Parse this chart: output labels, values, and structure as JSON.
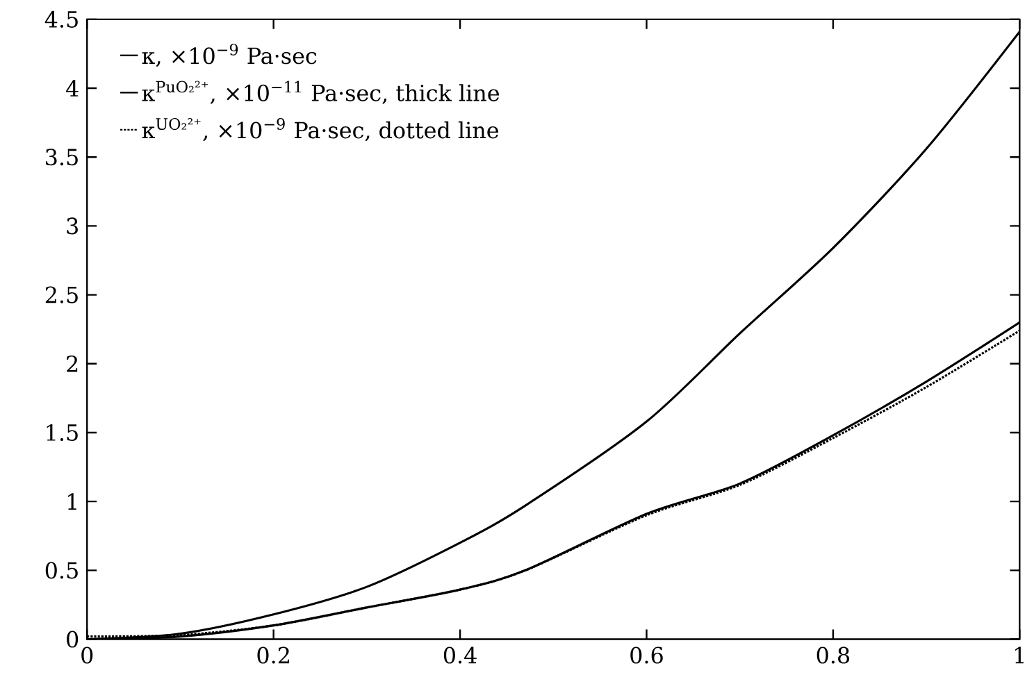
{
  "chart_data": {
    "type": "line",
    "x": [
      0,
      0.1,
      0.2,
      0.3,
      0.4,
      0.47,
      0.6,
      0.7,
      0.8,
      0.9,
      1
    ],
    "series": [
      {
        "name": "κ, ×10$^{−9}$ Pa·sec",
        "color": "#000000",
        "line_style": "solid",
        "values": [
          0,
          0.04,
          0.18,
          0.38,
          0.7,
          0.97,
          1.58,
          2.22,
          2.84,
          3.56,
          4.41
        ]
      },
      {
        "name": "κ$^{PuO₂²⁺}$, ×10$^{−11}$ Pa·sec, thick line",
        "color": "#000000",
        "line_style": "solid",
        "values": [
          0,
          0.02,
          0.1,
          0.23,
          0.36,
          0.5,
          0.91,
          1.13,
          1.48,
          1.87,
          2.3
        ]
      },
      {
        "name": "κ$^{UO₂²⁺}$, ×10$^{−9}$ Pa·sec, dotted line",
        "color": "#000000",
        "line_style": "dotted",
        "values": [
          0.02,
          0.03,
          0.1,
          0.23,
          0.36,
          0.5,
          0.9,
          1.12,
          1.46,
          1.83,
          2.24
        ]
      }
    ],
    "xlim": [
      0,
      1
    ],
    "ylim": [
      0,
      4.5
    ],
    "xticks": [
      0,
      0.2,
      0.4,
      0.6,
      0.8,
      1
    ],
    "yticks": [
      0,
      0.5,
      1,
      1.5,
      2,
      2.5,
      3,
      3.5,
      4,
      4.5
    ],
    "legend": "top left",
    "marker": "none",
    "grid": false
  }
}
